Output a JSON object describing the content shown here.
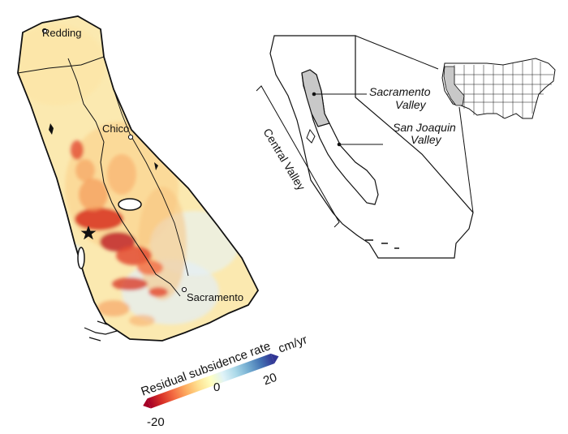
{
  "main_map": {
    "cities": {
      "redding": "Redding",
      "chico": "Chico",
      "sacramento": "Sacramento"
    }
  },
  "colorbar": {
    "title": "Residual subsidence rate",
    "unit": "cm/yr",
    "min_label": "-20",
    "mid_label": "0",
    "max_label": "20",
    "min": -20,
    "max": 20,
    "colors": [
      "#a50026",
      "#d73027",
      "#f46d43",
      "#fdae61",
      "#fee090",
      "#ffffbf",
      "#e0f3f8",
      "#abd9e9",
      "#74add1",
      "#4575b4",
      "#313695"
    ]
  },
  "inset": {
    "sacramento_valley": [
      "Sacramento",
      "Valley"
    ],
    "san_joaquin_valley": [
      "San Joaquin",
      "Valley"
    ],
    "central_valley": "Central Valley"
  }
}
